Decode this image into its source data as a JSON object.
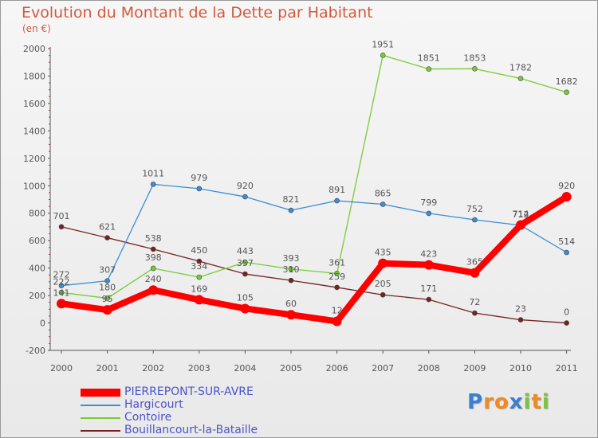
{
  "header": {
    "title": "Evolution du Montant de la Dette par Habitant",
    "subtitle": "(en €)"
  },
  "logo": {
    "letters": [
      {
        "char": "P",
        "color": "#3a7fd0"
      },
      {
        "char": "r",
        "color": "#f08a24"
      },
      {
        "char": "o",
        "color": "#f08a24"
      },
      {
        "char": "x",
        "color": "#3a7fd0"
      },
      {
        "char": "i",
        "color": "#7cc242"
      },
      {
        "char": "t",
        "color": "#f08a24"
      },
      {
        "char": "i",
        "color": "#7cc242"
      }
    ]
  },
  "chart_data": {
    "type": "line",
    "title": "Evolution du Montant de la Dette par Habitant",
    "subtitle": "(en €)",
    "xlabel": "",
    "ylabel": "",
    "x": [
      "2000",
      "2001",
      "2002",
      "2003",
      "2004",
      "2005",
      "2006",
      "2007",
      "2008",
      "2009",
      "2010",
      "2011"
    ],
    "ylim": [
      -200,
      2000
    ],
    "yticks": [
      -200,
      0,
      200,
      400,
      600,
      800,
      1000,
      1200,
      1400,
      1600,
      1800,
      2000
    ],
    "grid": false,
    "legend_position": "bottom-left",
    "series": [
      {
        "name": "PIERREPONT-SUR-AVRE",
        "color": "#ff0000",
        "values": [
          141,
          95,
          240,
          169,
          105,
          60,
          12,
          435,
          423,
          365,
          714,
          920
        ]
      },
      {
        "name": "Hargicourt",
        "color": "#3a8dd6",
        "values": [
          272,
          307,
          1011,
          979,
          920,
          821,
          891,
          865,
          799,
          752,
          712,
          514
        ]
      },
      {
        "name": "Contoire",
        "color": "#77cc33",
        "values": [
          222,
          180,
          398,
          334,
          443,
          393,
          361,
          1951,
          1851,
          1853,
          1782,
          1682
        ]
      },
      {
        "name": "Bouillancourt-la-Bataille",
        "color": "#772222",
        "values": [
          701,
          621,
          538,
          450,
          357,
          310,
          259,
          205,
          171,
          72,
          23,
          0
        ]
      }
    ]
  }
}
